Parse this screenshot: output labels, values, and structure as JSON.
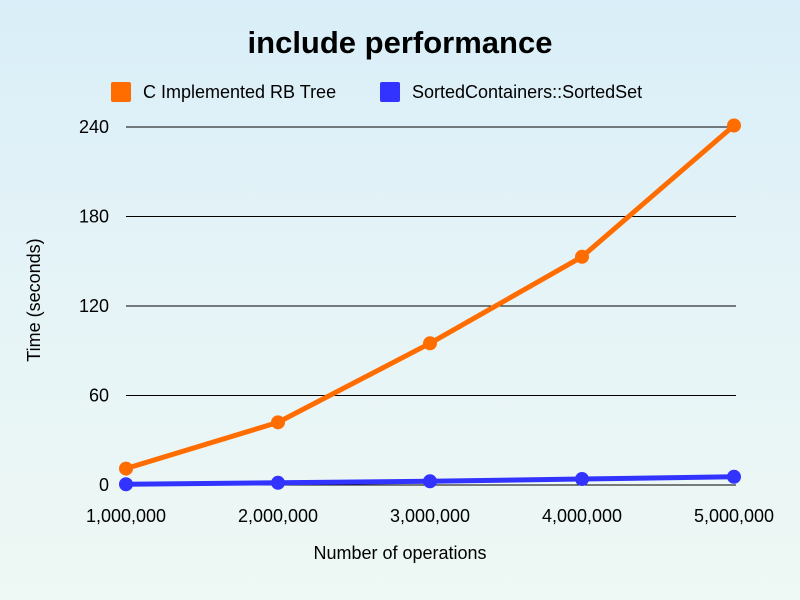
{
  "chart_data": {
    "type": "line",
    "title": "include performance",
    "xlabel": "Number of operations",
    "ylabel": "Time (seconds)",
    "x": [
      1000000,
      2000000,
      3000000,
      4000000,
      5000000
    ],
    "x_tick_labels": [
      "1,000,000",
      "2,000,000",
      "3,000,000",
      "4,000,000",
      "5,000,000"
    ],
    "y_ticks": [
      0,
      60,
      120,
      180,
      240
    ],
    "y_tick_labels": [
      "0",
      "60",
      "120",
      "180",
      "240"
    ],
    "ylim": [
      0,
      240
    ],
    "grid": true,
    "legend_position": "top",
    "series": [
      {
        "name": "C Implemented RB Tree",
        "color": "#ff6d00",
        "values": [
          11,
          42,
          95,
          153,
          241
        ]
      },
      {
        "name": "SortedContainers::SortedSet",
        "color": "#3333ff",
        "values": [
          0.5,
          1.5,
          2.5,
          4,
          5.5
        ]
      }
    ]
  }
}
